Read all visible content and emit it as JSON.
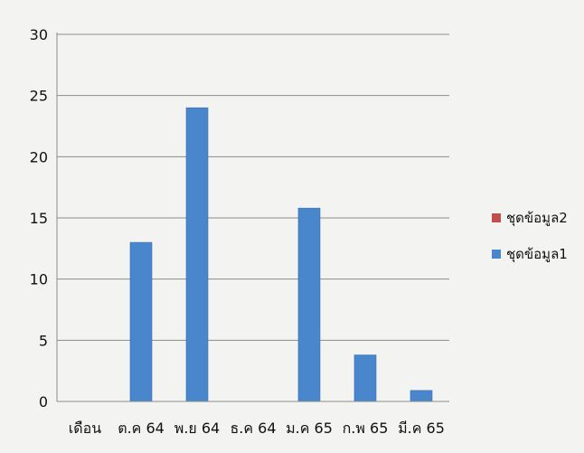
{
  "chart_data": {
    "type": "bar",
    "categories": [
      "เดือน",
      "ต.ค 64",
      "พ.ย 64",
      "ธ.ค 64",
      "ม.ค 65",
      "ก.พ 65",
      "มี.ค 65"
    ],
    "series": [
      {
        "name": "ชุดข้อมูล1",
        "color": "#4a86cc",
        "values": [
          0,
          13,
          24,
          0,
          15.8,
          3.8,
          0.9
        ]
      },
      {
        "name": "ชุดข้อมูล2",
        "color": "#c0504d",
        "values": [
          0,
          0,
          0,
          0,
          0,
          0,
          0
        ]
      }
    ],
    "ylim": [
      0,
      30
    ],
    "yticks": [
      0,
      5,
      10,
      15,
      20,
      25,
      30
    ],
    "grid": true,
    "legend_position": "right"
  }
}
